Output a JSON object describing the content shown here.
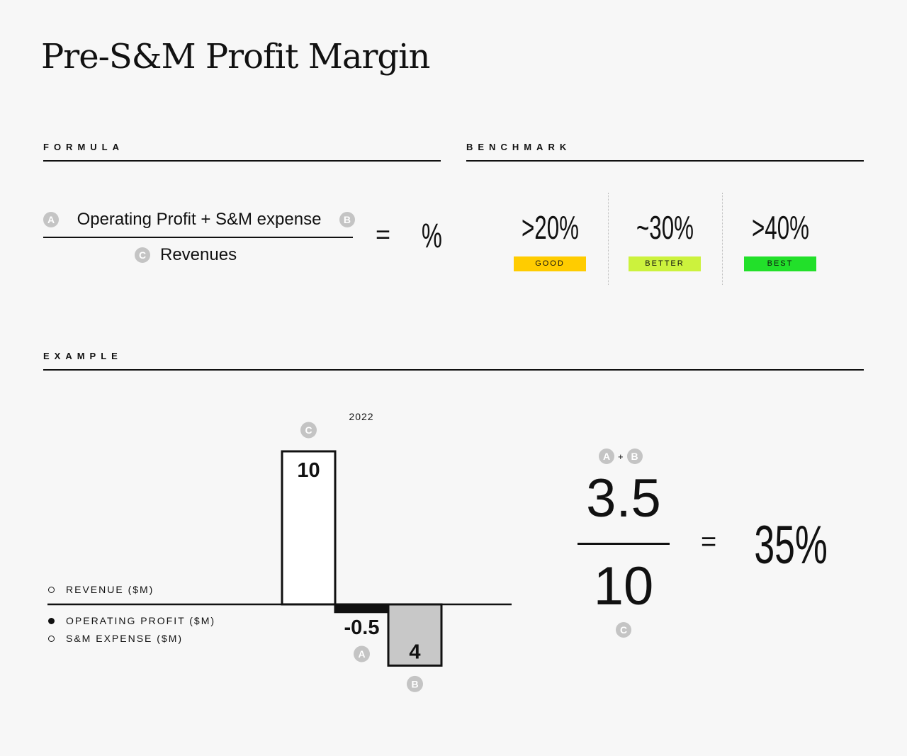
{
  "page": {
    "title": "Pre-S&M Profit Margin"
  },
  "formula": {
    "label": "FORMULA",
    "numerator": "Operating Profit + S&M expense",
    "denominator": "Revenues",
    "badge_a": "A",
    "badge_b": "B",
    "badge_c": "C",
    "equals": "=",
    "result": "%"
  },
  "benchmark": {
    "label": "BENCHMARK",
    "items": [
      {
        "value": ">20%",
        "tag": "GOOD",
        "color": "#ffcc00"
      },
      {
        "value": "~30%",
        "tag": "BETTER",
        "color": "#ccf23d"
      },
      {
        "value": ">40%",
        "tag": "BEST",
        "color": "#22e02a"
      }
    ]
  },
  "example": {
    "label": "EXAMPLE",
    "legend": [
      {
        "label": "REVENUE ($M)",
        "filled": false
      },
      {
        "label": "OPERATING PROFIT ($M)",
        "filled": true
      },
      {
        "label": "S&M EXPENSE ($M)",
        "filled": false
      }
    ],
    "calc": {
      "badge_a": "A",
      "plus": "+",
      "badge_b": "B",
      "numerator": "3.5",
      "denominator": "10",
      "badge_c": "C",
      "equals": "=",
      "result": "35%"
    }
  },
  "chart_data": {
    "type": "bar",
    "categories": [
      "2022"
    ],
    "series": [
      {
        "name": "REVENUE ($M)",
        "values": [
          10
        ],
        "badge": "C",
        "label": "10",
        "color": "#ffffff"
      },
      {
        "name": "OPERATING PROFIT ($M)",
        "values": [
          -0.5
        ],
        "badge": "A",
        "label": "-0.5",
        "color": "#111111"
      },
      {
        "name": "S&M EXPENSE ($M)",
        "values": [
          -4
        ],
        "badge": "B",
        "label": "4",
        "color": "#c8c8c8"
      }
    ],
    "xlabel": "",
    "ylabel": "",
    "grid": false
  }
}
